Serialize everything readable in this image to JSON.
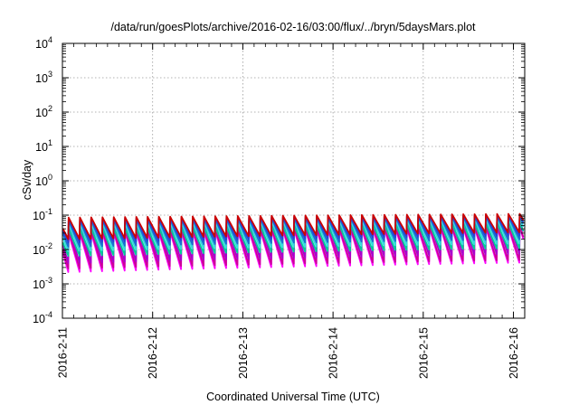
{
  "chart_data": {
    "type": "line",
    "title": "/data/run/goesPlots/archive/2016-02-16/03:00/flux/../bryn/5daysMars.plot",
    "xlabel": "Coordinated Universal Time (UTC)",
    "ylabel": "cSv/day",
    "yscale": "log",
    "ylim_exp": [
      -4,
      4
    ],
    "y_ticks": [
      {
        "base": "10",
        "exp": "-4",
        "value": 0.0001
      },
      {
        "base": "10",
        "exp": "-3",
        "value": 0.001
      },
      {
        "base": "10",
        "exp": "-2",
        "value": 0.01
      },
      {
        "base": "10",
        "exp": "-1",
        "value": 0.1
      },
      {
        "base": "10",
        "exp": "0",
        "value": 1
      },
      {
        "base": "10",
        "exp": "1",
        "value": 10
      },
      {
        "base": "10",
        "exp": "2",
        "value": 100
      },
      {
        "base": "10",
        "exp": "3",
        "value": 1000
      },
      {
        "base": "10",
        "exp": "4",
        "value": 10000
      }
    ],
    "xlim": [
      "2016-02-11 00:00",
      "2016-02-16 03:00"
    ],
    "x_ticks": [
      "2016-2-11",
      "2016-2-12",
      "2016-2-13",
      "2016-2-14",
      "2016-2-15",
      "2016-2-16"
    ],
    "grid": true,
    "pattern": "sawtooth",
    "cycles_per_day": 8,
    "series": [
      {
        "color": "#ff00ff",
        "peak_start": 0.03,
        "peak_end": 0.045,
        "trough_start": 0.0022,
        "trough_end": 0.0042
      },
      {
        "color": "#cc0099",
        "peak_start": 0.035,
        "peak_end": 0.05,
        "trough_start": 0.0028,
        "trough_end": 0.005
      },
      {
        "color": "#aa00cc",
        "peak_start": 0.05,
        "peak_end": 0.07,
        "trough_start": 0.004,
        "trough_end": 0.0075
      },
      {
        "color": "#00cc99",
        "peak_start": 0.04,
        "peak_end": 0.06,
        "trough_start": 0.0065,
        "trough_end": 0.011
      },
      {
        "color": "#33dddd",
        "peak_start": 0.055,
        "peak_end": 0.08,
        "trough_start": 0.009,
        "trough_end": 0.015
      },
      {
        "color": "#1a6fd0",
        "peak_start": 0.07,
        "peak_end": 0.095,
        "trough_start": 0.012,
        "trough_end": 0.02
      },
      {
        "color": "#2a3fd6",
        "peak_start": 0.078,
        "peak_end": 0.1,
        "trough_start": 0.016,
        "trough_end": 0.026
      },
      {
        "color": "#cc0000",
        "peak_start": 0.085,
        "peak_end": 0.11,
        "trough_start": 0.02,
        "trough_end": 0.032
      }
    ]
  }
}
